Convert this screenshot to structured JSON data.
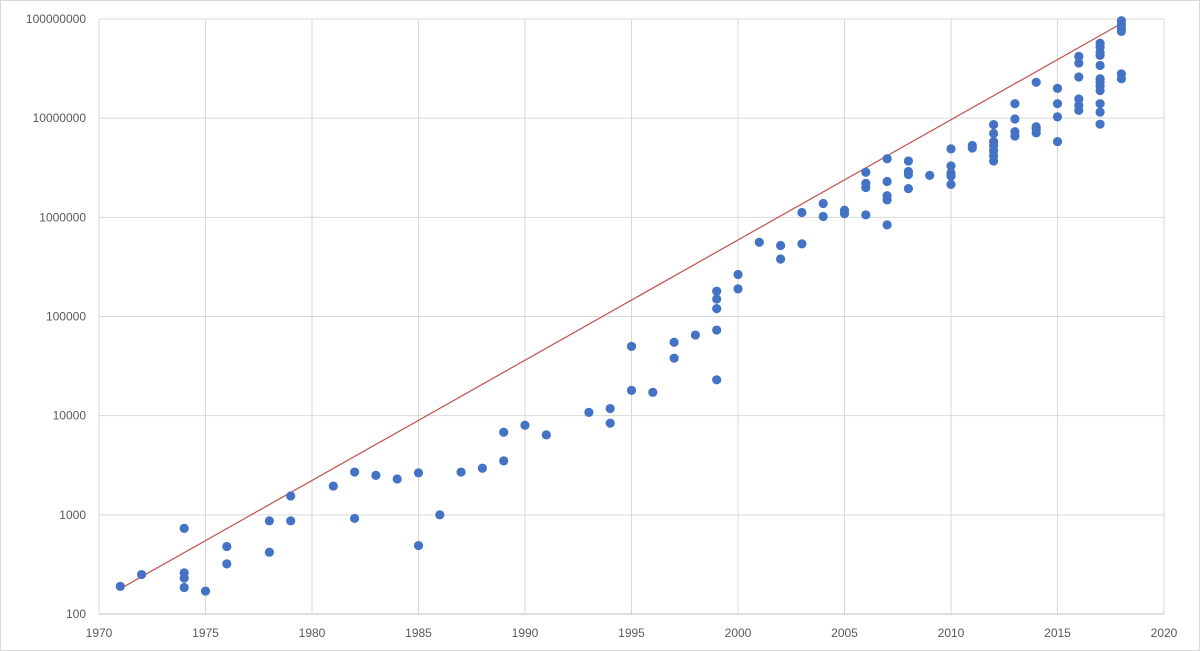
{
  "chart_data": {
    "type": "scatter",
    "title": "",
    "xlabel": "",
    "ylabel": "",
    "xlim": [
      1970,
      2020
    ],
    "ylim": [
      100,
      100000000
    ],
    "y_scale": "log",
    "grid": true,
    "x_ticks": [
      "1970",
      "1975",
      "1980",
      "1985",
      "1990",
      "1995",
      "2000",
      "2005",
      "2010",
      "2015",
      "2020"
    ],
    "y_ticks": [
      "100",
      "1000",
      "10000",
      "100000",
      "1000000",
      "10000000",
      "100000000"
    ],
    "colors": {
      "points": "#4472c4",
      "trend": "#c0504d",
      "grid": "#d9d9d9",
      "tick_text": "#595959"
    },
    "series": [
      {
        "values": [
          [
            1971,
            190
          ],
          [
            1972,
            250
          ],
          [
            1974,
            730
          ],
          [
            1974,
            260
          ],
          [
            1974,
            230
          ],
          [
            1974,
            185
          ],
          [
            1975,
            170
          ],
          [
            1976,
            480
          ],
          [
            1976,
            320
          ],
          [
            1978,
            870
          ],
          [
            1978,
            420
          ],
          [
            1979,
            1550
          ],
          [
            1979,
            870
          ],
          [
            1981,
            1950
          ],
          [
            1982,
            2700
          ],
          [
            1982,
            920
          ],
          [
            1983,
            2500
          ],
          [
            1984,
            2300
          ],
          [
            1985,
            2650
          ],
          [
            1985,
            490
          ],
          [
            1986,
            1000
          ],
          [
            1987,
            2700
          ],
          [
            1988,
            2950
          ],
          [
            1989,
            6800
          ],
          [
            1989,
            3500
          ],
          [
            1990,
            8000
          ],
          [
            1991,
            6400
          ],
          [
            1993,
            10800
          ],
          [
            1994,
            11800
          ],
          [
            1994,
            8400
          ],
          [
            1995,
            50000
          ],
          [
            1995,
            18000
          ],
          [
            1996,
            17200
          ],
          [
            1997,
            55000
          ],
          [
            1997,
            38000
          ],
          [
            1998,
            65000
          ],
          [
            1999,
            180000
          ],
          [
            1999,
            150000
          ],
          [
            1999,
            120000
          ],
          [
            1999,
            73000
          ],
          [
            1999,
            23000
          ],
          [
            2000,
            265000
          ],
          [
            2000,
            190000
          ],
          [
            2001,
            560000
          ],
          [
            2002,
            520000
          ],
          [
            2002,
            380000
          ],
          [
            2003,
            1120000
          ],
          [
            2003,
            540000
          ],
          [
            2004,
            1380000
          ],
          [
            2004,
            1020000
          ],
          [
            2005,
            1180000
          ],
          [
            2005,
            1090000
          ],
          [
            2006,
            2850000
          ],
          [
            2006,
            2200000
          ],
          [
            2006,
            2000000
          ],
          [
            2006,
            1060000
          ],
          [
            2007,
            3900000
          ],
          [
            2007,
            2300000
          ],
          [
            2007,
            1650000
          ],
          [
            2007,
            1500000
          ],
          [
            2007,
            840000
          ],
          [
            2008,
            3700000
          ],
          [
            2008,
            2900000
          ],
          [
            2008,
            2700000
          ],
          [
            2008,
            1950000
          ],
          [
            2009,
            2650000
          ],
          [
            2010,
            4900000
          ],
          [
            2010,
            3300000
          ],
          [
            2010,
            2800000
          ],
          [
            2010,
            2600000
          ],
          [
            2010,
            2150000
          ],
          [
            2011,
            5300000
          ],
          [
            2011,
            5000000
          ],
          [
            2012,
            8600000
          ],
          [
            2012,
            7000000
          ],
          [
            2012,
            5800000
          ],
          [
            2012,
            5300000
          ],
          [
            2012,
            4700000
          ],
          [
            2012,
            4200000
          ],
          [
            2012,
            3700000
          ],
          [
            2013,
            14000000
          ],
          [
            2013,
            9800000
          ],
          [
            2013,
            7300000
          ],
          [
            2013,
            6600000
          ],
          [
            2014,
            23000000
          ],
          [
            2014,
            8200000
          ],
          [
            2014,
            7700000
          ],
          [
            2014,
            7100000
          ],
          [
            2015,
            20000000
          ],
          [
            2015,
            14000000
          ],
          [
            2015,
            10300000
          ],
          [
            2015,
            5800000
          ],
          [
            2016,
            42000000
          ],
          [
            2016,
            36000000
          ],
          [
            2016,
            26000000
          ],
          [
            2016,
            15600000
          ],
          [
            2016,
            13500000
          ],
          [
            2016,
            12000000
          ],
          [
            2017,
            57000000
          ],
          [
            2017,
            52000000
          ],
          [
            2017,
            46000000
          ],
          [
            2017,
            43000000
          ],
          [
            2017,
            34000000
          ],
          [
            2017,
            25000000
          ],
          [
            2017,
            23000000
          ],
          [
            2017,
            21000000
          ],
          [
            2017,
            19000000
          ],
          [
            2017,
            14000000
          ],
          [
            2017,
            11500000
          ],
          [
            2017,
            8700000
          ],
          [
            2018,
            96000000
          ],
          [
            2018,
            88000000
          ],
          [
            2018,
            80000000
          ],
          [
            2018,
            75000000
          ],
          [
            2018,
            28000000
          ],
          [
            2018,
            25000000
          ]
        ]
      }
    ],
    "trendline": {
      "from": [
        1971,
        180
      ],
      "to": [
        2018,
        90000000
      ]
    }
  }
}
